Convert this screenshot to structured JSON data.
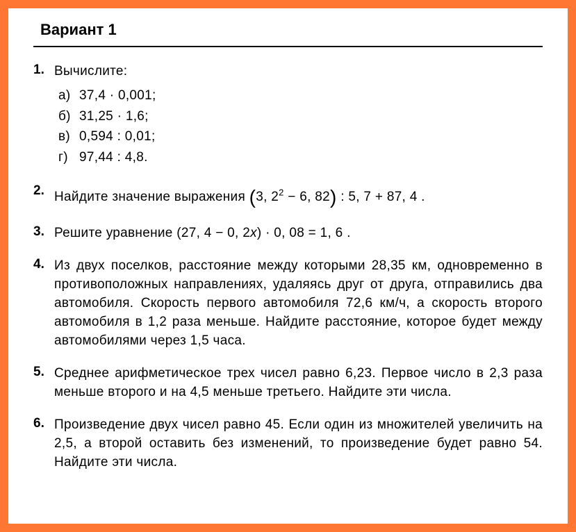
{
  "styling": {
    "page_bg": "#ffffff",
    "border_bg": "#ff7733",
    "text_color": "#000000",
    "font_family": "Arial, Helvetica, sans-serif",
    "body_fontsize": 19,
    "header_fontsize": 22,
    "rule_thickness": 2.5
  },
  "header": {
    "title": "Вариант 1"
  },
  "problems": {
    "p1": {
      "num": "1.",
      "prompt": "Вычислите:",
      "a_label": "а)",
      "a_text": "37,4 · 0,001;",
      "b_label": "б)",
      "b_text": "31,25 · 1,6;",
      "v_label": "в)",
      "v_text": "0,594 : 0,01;",
      "g_label": "г)",
      "g_text": "97,44 : 4,8."
    },
    "p2": {
      "num": "2.",
      "text_before": "Найдите значение выражения ",
      "expr_inner": "3, 2",
      "expr_sup": "2",
      "expr_after_sup": " − 6, 82",
      "expr_tail": " : 5, 7 + 87, 4 ."
    },
    "p3": {
      "num": "3.",
      "text_before": "Решите уравнение ",
      "expr_inner_a": "(27, 4 − 0, 2",
      "expr_x": "x",
      "expr_inner_b": ") · 0, 08 = 1, 6 ."
    },
    "p4": {
      "num": "4.",
      "text": "Из двух поселков, расстояние между которыми 28,35 км, одновременно в противоположных направлениях, удаляясь друг от друга, отправились два автомобиля. Скорость первого автомобиля 72,6 км/ч, а скорость второго автомобиля в 1,2 раза меньше. Найдите расстояние, которое будет между автомобилями через 1,5 часа."
    },
    "p5": {
      "num": "5.",
      "text": "Среднее арифметическое трех чисел равно 6,23. Первое число в 2,3 раза меньше второго и на 4,5 меньше третьего. Найдите эти числа."
    },
    "p6": {
      "num": "6.",
      "text": "Произведение двух чисел равно 45. Если один из множителей увеличить на 2,5, а второй оставить без изменений, то произведение будет равно 54. Найдите эти числа."
    }
  }
}
